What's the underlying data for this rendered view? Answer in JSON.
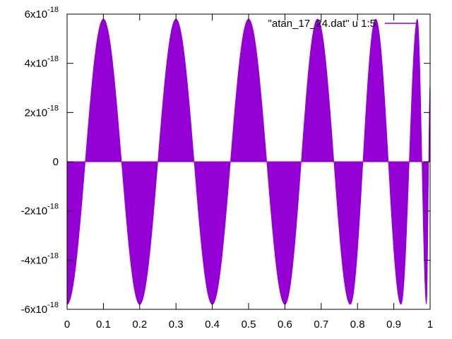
{
  "chart_data": {
    "type": "area",
    "title": "",
    "xlabel": "",
    "ylabel": "",
    "xlim": [
      0,
      1
    ],
    "ylim": [
      -6e-18,
      6e-18
    ],
    "grid": false,
    "legend_position": "top-right",
    "x_ticks": [
      {
        "value": 0,
        "label": "0"
      },
      {
        "value": 0.1,
        "label": "0.1"
      },
      {
        "value": 0.2,
        "label": "0.2"
      },
      {
        "value": 0.3,
        "label": "0.3"
      },
      {
        "value": 0.4,
        "label": "0.4"
      },
      {
        "value": 0.5,
        "label": "0.5"
      },
      {
        "value": 0.6,
        "label": "0.6"
      },
      {
        "value": 0.7,
        "label": "0.7"
      },
      {
        "value": 0.8,
        "label": "0.8"
      },
      {
        "value": 0.9,
        "label": "0.9"
      },
      {
        "value": 1,
        "label": "1"
      }
    ],
    "y_ticks": [
      {
        "value": 6e-18,
        "mantissa": "6x10",
        "exp": "-18"
      },
      {
        "value": 4e-18,
        "mantissa": "4x10",
        "exp": "-18"
      },
      {
        "value": 2e-18,
        "mantissa": "2x10",
        "exp": "-18"
      },
      {
        "value": 0,
        "mantissa": "0",
        "exp": ""
      },
      {
        "value": -2e-18,
        "mantissa": "-2x10",
        "exp": "-18"
      },
      {
        "value": -4e-18,
        "mantissa": "-4x10",
        "exp": "-18"
      },
      {
        "value": -6e-18,
        "mantissa": "-6x10",
        "exp": "-18"
      }
    ],
    "series": [
      {
        "name": "\"atan_17_24.dat\" u 1:5",
        "color": "#9400d3",
        "envelope_amplitude": 5.8e-18,
        "envelope_zero_crossings": [
          0.05,
          0.152,
          0.254,
          0.35,
          0.448,
          0.55,
          0.65,
          0.74,
          0.82,
          0.89,
          0.95,
          0.985,
          1.0
        ],
        "envelope_extrema": [
          {
            "x": 0.0,
            "y": -5.8e-18
          },
          {
            "x": 0.1,
            "y": 5.8e-18
          },
          {
            "x": 0.2,
            "y": -5.8e-18
          },
          {
            "x": 0.3,
            "y": 5.8e-18
          },
          {
            "x": 0.4,
            "y": -5.8e-18
          },
          {
            "x": 0.5,
            "y": 5.8e-18
          },
          {
            "x": 0.6,
            "y": -5.8e-18
          },
          {
            "x": 0.69,
            "y": 5.8e-18
          },
          {
            "x": 0.78,
            "y": -5.8e-18
          },
          {
            "x": 0.85,
            "y": 5.8e-18
          },
          {
            "x": 0.92,
            "y": -5.8e-18
          },
          {
            "x": 0.965,
            "y": 5.8e-18
          },
          {
            "x": 0.99,
            "y": -5.8e-18
          },
          {
            "x": 1.0,
            "y": 3.2e-18
          }
        ]
      }
    ]
  }
}
